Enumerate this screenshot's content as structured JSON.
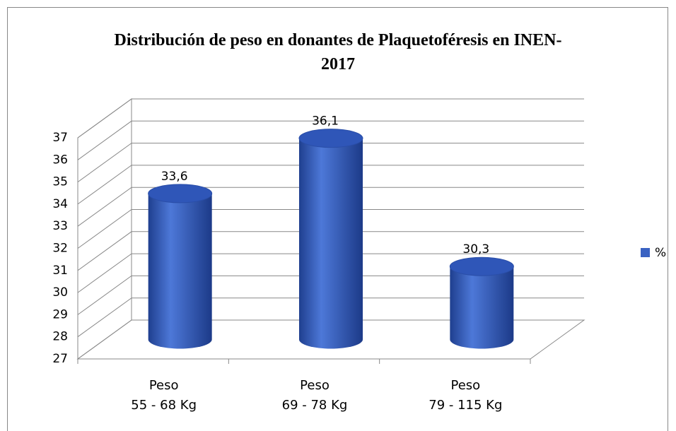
{
  "chart_data": {
    "type": "bar3d",
    "title": "Distribución de peso en donantes de Plaquetoféresis en INEN-2017",
    "categories": [
      "Peso\n55 - 68 Kg",
      "Peso\n69 - 78 Kg",
      "Peso\n79 - 115 Kg"
    ],
    "series": [
      {
        "name": "%",
        "color": "#3a62c2",
        "values": [
          33.6,
          36.1,
          30.3
        ],
        "value_labels": [
          "33,6",
          "36,1",
          "30,3"
        ]
      }
    ],
    "ylim": [
      27,
      37
    ],
    "yticks": [
      27,
      28,
      29,
      30,
      31,
      32,
      33,
      34,
      35,
      36,
      37
    ],
    "grid": true,
    "legend": "right"
  }
}
